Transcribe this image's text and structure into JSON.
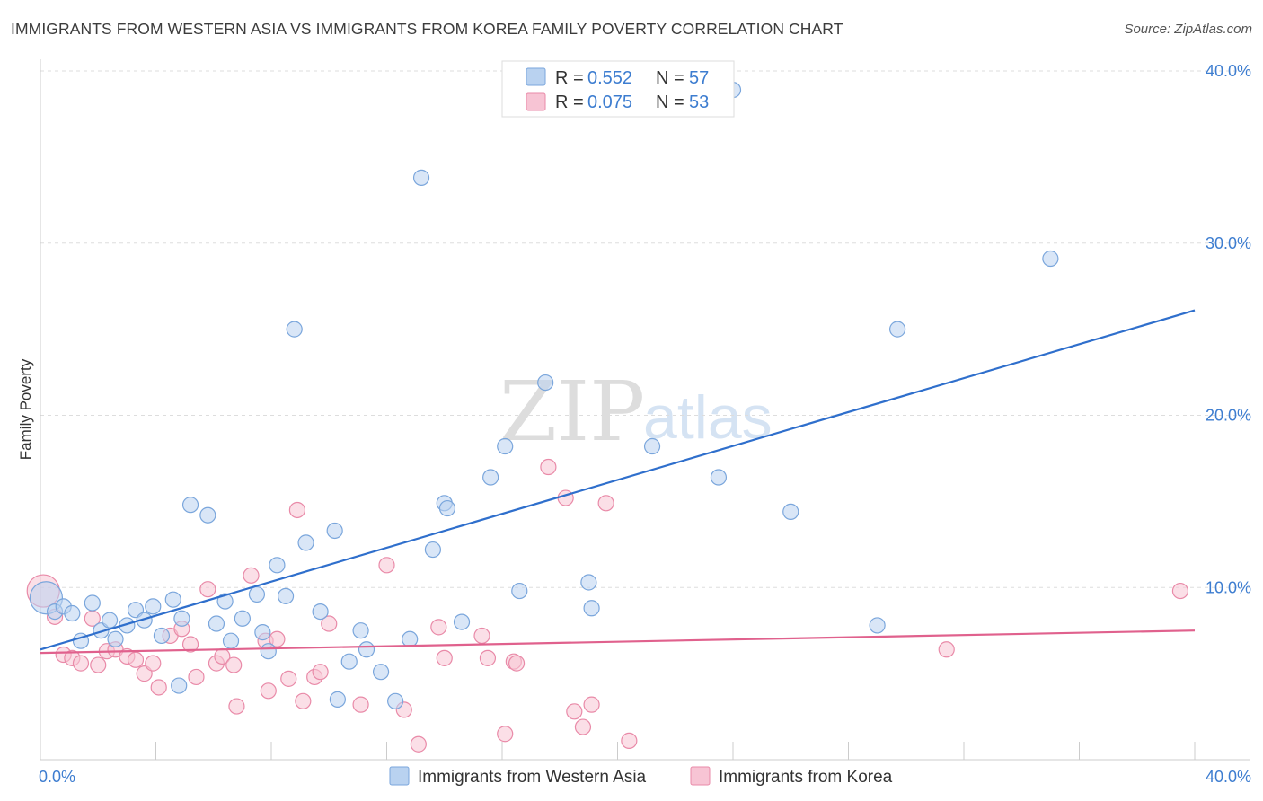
{
  "title": "IMMIGRANTS FROM WESTERN ASIA VS IMMIGRANTS FROM KOREA FAMILY POVERTY CORRELATION CHART",
  "source": "Source: ZipAtlas.com",
  "watermark": {
    "zip": "ZIP",
    "atlas": "atlas"
  },
  "colors": {
    "blue_fill": "#b9d2f0",
    "blue_stroke": "#7aa6dc",
    "blue_line": "#2f6fcc",
    "pink_fill": "#f7c4d4",
    "pink_stroke": "#e98aa8",
    "pink_line": "#e0618d",
    "grid": "#dddddd",
    "axis_text": "#3d7dd0"
  },
  "legend": {
    "r_label": "R =",
    "n_label": "N =",
    "rows": [
      {
        "r": "0.552",
        "n": "57",
        "color": "blue"
      },
      {
        "r": "0.075",
        "n": "53",
        "color": "pink"
      }
    ]
  },
  "chart_data": {
    "type": "scatter",
    "ylabel": "Family Poverty",
    "xlim": [
      0,
      40
    ],
    "ylim": [
      0,
      40
    ],
    "yticks": [
      {
        "value": 10,
        "label": "10.0%"
      },
      {
        "value": 20,
        "label": "20.0%"
      },
      {
        "value": 30,
        "label": "30.0%"
      },
      {
        "value": 40,
        "label": "40.0%"
      }
    ],
    "xtick_labels": {
      "min": "0.0%",
      "max": "40.0%"
    },
    "x_minor_ticks": [
      0,
      4,
      8,
      12,
      16,
      20,
      24,
      28,
      32,
      36,
      40
    ],
    "series": [
      {
        "name": "Immigrants from Western Asia",
        "color": "blue",
        "trend": {
          "x0": 0,
          "y0": 6.4,
          "x1": 40,
          "y1": 26.1
        },
        "points": [
          [
            0.2,
            9.4
          ],
          [
            0.5,
            8.6
          ],
          [
            0.8,
            8.9
          ],
          [
            1.1,
            8.5
          ],
          [
            1.4,
            6.9
          ],
          [
            1.8,
            9.1
          ],
          [
            2.1,
            7.5
          ],
          [
            2.4,
            8.1
          ],
          [
            2.6,
            7.0
          ],
          [
            3.0,
            7.8
          ],
          [
            3.3,
            8.7
          ],
          [
            3.6,
            8.1
          ],
          [
            3.9,
            8.9
          ],
          [
            4.2,
            7.2
          ],
          [
            4.6,
            9.3
          ],
          [
            4.8,
            4.3
          ],
          [
            4.9,
            8.2
          ],
          [
            5.2,
            14.8
          ],
          [
            5.8,
            14.2
          ],
          [
            6.1,
            7.9
          ],
          [
            6.4,
            9.2
          ],
          [
            6.6,
            6.9
          ],
          [
            7.0,
            8.2
          ],
          [
            7.5,
            9.6
          ],
          [
            7.7,
            7.4
          ],
          [
            7.9,
            6.3
          ],
          [
            8.2,
            11.3
          ],
          [
            8.5,
            9.5
          ],
          [
            8.8,
            25.0
          ],
          [
            9.2,
            12.6
          ],
          [
            9.7,
            8.6
          ],
          [
            10.2,
            13.3
          ],
          [
            10.3,
            3.5
          ],
          [
            10.7,
            5.7
          ],
          [
            11.1,
            7.5
          ],
          [
            11.3,
            6.4
          ],
          [
            11.8,
            5.1
          ],
          [
            12.3,
            3.4
          ],
          [
            12.8,
            7.0
          ],
          [
            13.2,
            33.8
          ],
          [
            13.6,
            12.2
          ],
          [
            14.0,
            14.9
          ],
          [
            14.1,
            14.6
          ],
          [
            14.6,
            8.0
          ],
          [
            15.6,
            16.4
          ],
          [
            16.1,
            18.2
          ],
          [
            16.6,
            9.8
          ],
          [
            17.5,
            21.9
          ],
          [
            19.0,
            10.3
          ],
          [
            19.1,
            8.8
          ],
          [
            21.2,
            18.2
          ],
          [
            23.5,
            16.4
          ],
          [
            24.0,
            38.9
          ],
          [
            26.0,
            14.4
          ],
          [
            29.0,
            7.8
          ],
          [
            29.7,
            25.0
          ],
          [
            35.0,
            29.1
          ]
        ]
      },
      {
        "name": "Immigrants from Korea",
        "color": "pink",
        "trend": {
          "x0": 0,
          "y0": 6.2,
          "x1": 40,
          "y1": 7.5
        },
        "points": [
          [
            0.1,
            9.8
          ],
          [
            0.5,
            8.3
          ],
          [
            0.8,
            6.1
          ],
          [
            1.1,
            5.9
          ],
          [
            1.4,
            5.6
          ],
          [
            1.8,
            8.2
          ],
          [
            2.0,
            5.5
          ],
          [
            2.3,
            6.3
          ],
          [
            2.6,
            6.4
          ],
          [
            3.0,
            6.0
          ],
          [
            3.3,
            5.8
          ],
          [
            3.6,
            5.0
          ],
          [
            3.9,
            5.6
          ],
          [
            4.1,
            4.2
          ],
          [
            4.5,
            7.2
          ],
          [
            4.9,
            7.6
          ],
          [
            5.2,
            6.7
          ],
          [
            5.4,
            4.8
          ],
          [
            5.8,
            9.9
          ],
          [
            6.1,
            5.6
          ],
          [
            6.3,
            6.0
          ],
          [
            6.7,
            5.5
          ],
          [
            6.8,
            3.1
          ],
          [
            7.3,
            10.7
          ],
          [
            7.8,
            6.9
          ],
          [
            7.9,
            4.0
          ],
          [
            8.2,
            7.0
          ],
          [
            8.6,
            4.7
          ],
          [
            8.9,
            14.5
          ],
          [
            9.1,
            3.4
          ],
          [
            9.5,
            4.8
          ],
          [
            9.7,
            5.1
          ],
          [
            10.0,
            7.9
          ],
          [
            11.1,
            3.2
          ],
          [
            12.0,
            11.3
          ],
          [
            12.6,
            2.9
          ],
          [
            13.1,
            0.9
          ],
          [
            13.8,
            7.7
          ],
          [
            14.0,
            5.9
          ],
          [
            15.3,
            7.2
          ],
          [
            15.5,
            5.9
          ],
          [
            16.1,
            1.5
          ],
          [
            16.4,
            5.7
          ],
          [
            16.5,
            5.6
          ],
          [
            17.6,
            17.0
          ],
          [
            18.2,
            15.2
          ],
          [
            18.5,
            2.8
          ],
          [
            18.8,
            1.9
          ],
          [
            19.1,
            3.2
          ],
          [
            19.6,
            14.9
          ],
          [
            20.4,
            1.1
          ],
          [
            31.4,
            6.4
          ],
          [
            39.5,
            9.8
          ]
        ]
      }
    ]
  }
}
